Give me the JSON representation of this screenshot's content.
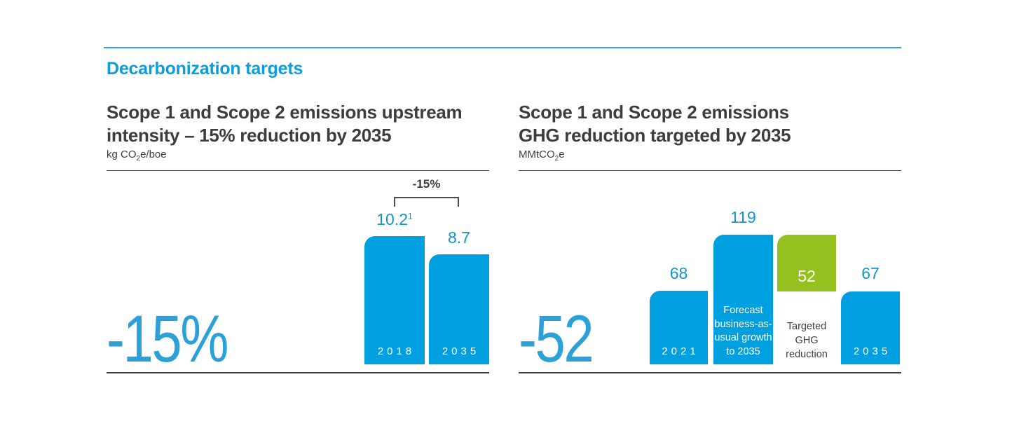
{
  "page": {
    "heading": "Decarbonization targets"
  },
  "colors": {
    "bar_blue": "#009fdf",
    "bar_green": "#95c01f",
    "value_label_blue": "#1295cb",
    "big_number_blue": "#2ba1d8",
    "heading_blue": "#0c9ed9",
    "dark_text": "#3d3d3d",
    "axis_rule": "#3c3c3c",
    "top_divider_blue": "#2ba3da"
  },
  "chart_data": [
    {
      "type": "bar",
      "title": "Scope 1 and Scope 2 emissions upstream intensity – 15% reduction by 2035",
      "title_lines": [
        "Scope 1 and Scope 2 emissions upstream",
        "intensity – 15% reduction by 2035"
      ],
      "ylabel": "kg CO2e/boe",
      "unit": {
        "pre": "kg CO",
        "sub": "2",
        "post": "e/boe"
      },
      "categories": [
        "2018",
        "2035"
      ],
      "values": [
        10.2,
        8.7
      ],
      "value_labels": [
        {
          "text": "10.2",
          "sup": "1"
        },
        {
          "text": "8.7",
          "sup": ""
        }
      ],
      "bracket_label": "-15%",
      "big_label": "-15%",
      "ylim": [
        0,
        10.2
      ],
      "legend": "none",
      "grid": false
    },
    {
      "type": "bar",
      "title": "Scope 1 and Scope 2 emissions GHG reduction targeted by 2035",
      "title_lines": [
        "Scope 1 and Scope 2 emissions",
        "GHG reduction targeted by 2035"
      ],
      "ylabel": "MMtCO2e",
      "unit": {
        "pre": "MMtCO",
        "sub": "2",
        "post": "e"
      },
      "categories": [
        "2021",
        "Forecast business-as-usual growth to 2035",
        "Targeted GHG reduction",
        "2035"
      ],
      "values": [
        68,
        119,
        52,
        67
      ],
      "value_labels": [
        "68",
        "119",
        "52",
        "67"
      ],
      "bar_inner_labels": {
        "bar1": "2021",
        "bar2": "Forecast\nbusiness-as-\nusual growth\nto 2035",
        "bar4": "2035"
      },
      "below_bar_label": "Targeted\nGHG\nreduction",
      "floating_bar": {
        "index": 2,
        "from": 67,
        "to": 119,
        "value": 52
      },
      "big_label": "-52",
      "ylim": [
        0,
        119
      ],
      "legend": "none",
      "grid": false
    }
  ]
}
